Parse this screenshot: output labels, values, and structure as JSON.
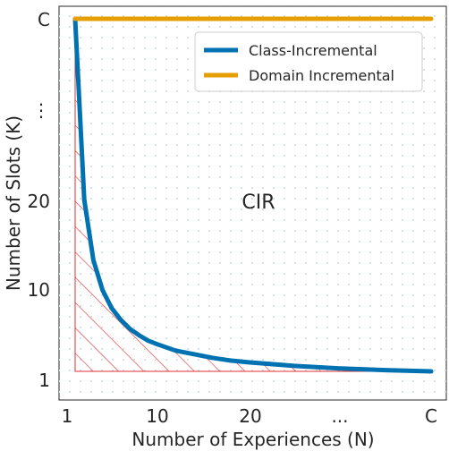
{
  "chart_data": {
    "type": "line",
    "xlabel": "Number of Experiences (N)",
    "ylabel": "Number of Slots (K)",
    "x_ticks": [
      "1",
      "10",
      "20",
      "...",
      "C"
    ],
    "y_ticks": [
      "1",
      "10",
      "20",
      "⋮",
      "C"
    ],
    "grid": "dotted",
    "legend_position": "top-right",
    "hatched_region": "below Class-Incremental curve",
    "annotation": "CIR",
    "series": [
      {
        "name": "Class-Incremental",
        "color": "#0072b2",
        "x": [
          1,
          2,
          3,
          4,
          5,
          6,
          7,
          8,
          9,
          10,
          12,
          14,
          16,
          18,
          20,
          25,
          30,
          35,
          40
        ],
        "y": [
          40,
          20,
          13.3,
          10,
          8,
          6.7,
          5.7,
          5,
          4.4,
          4,
          3.3,
          2.9,
          2.5,
          2.2,
          2,
          1.6,
          1.33,
          1.14,
          1
        ]
      },
      {
        "name": "Domain Incremental",
        "color": "#e69f00",
        "x": [
          1,
          40
        ],
        "y": [
          40,
          40
        ]
      }
    ]
  }
}
